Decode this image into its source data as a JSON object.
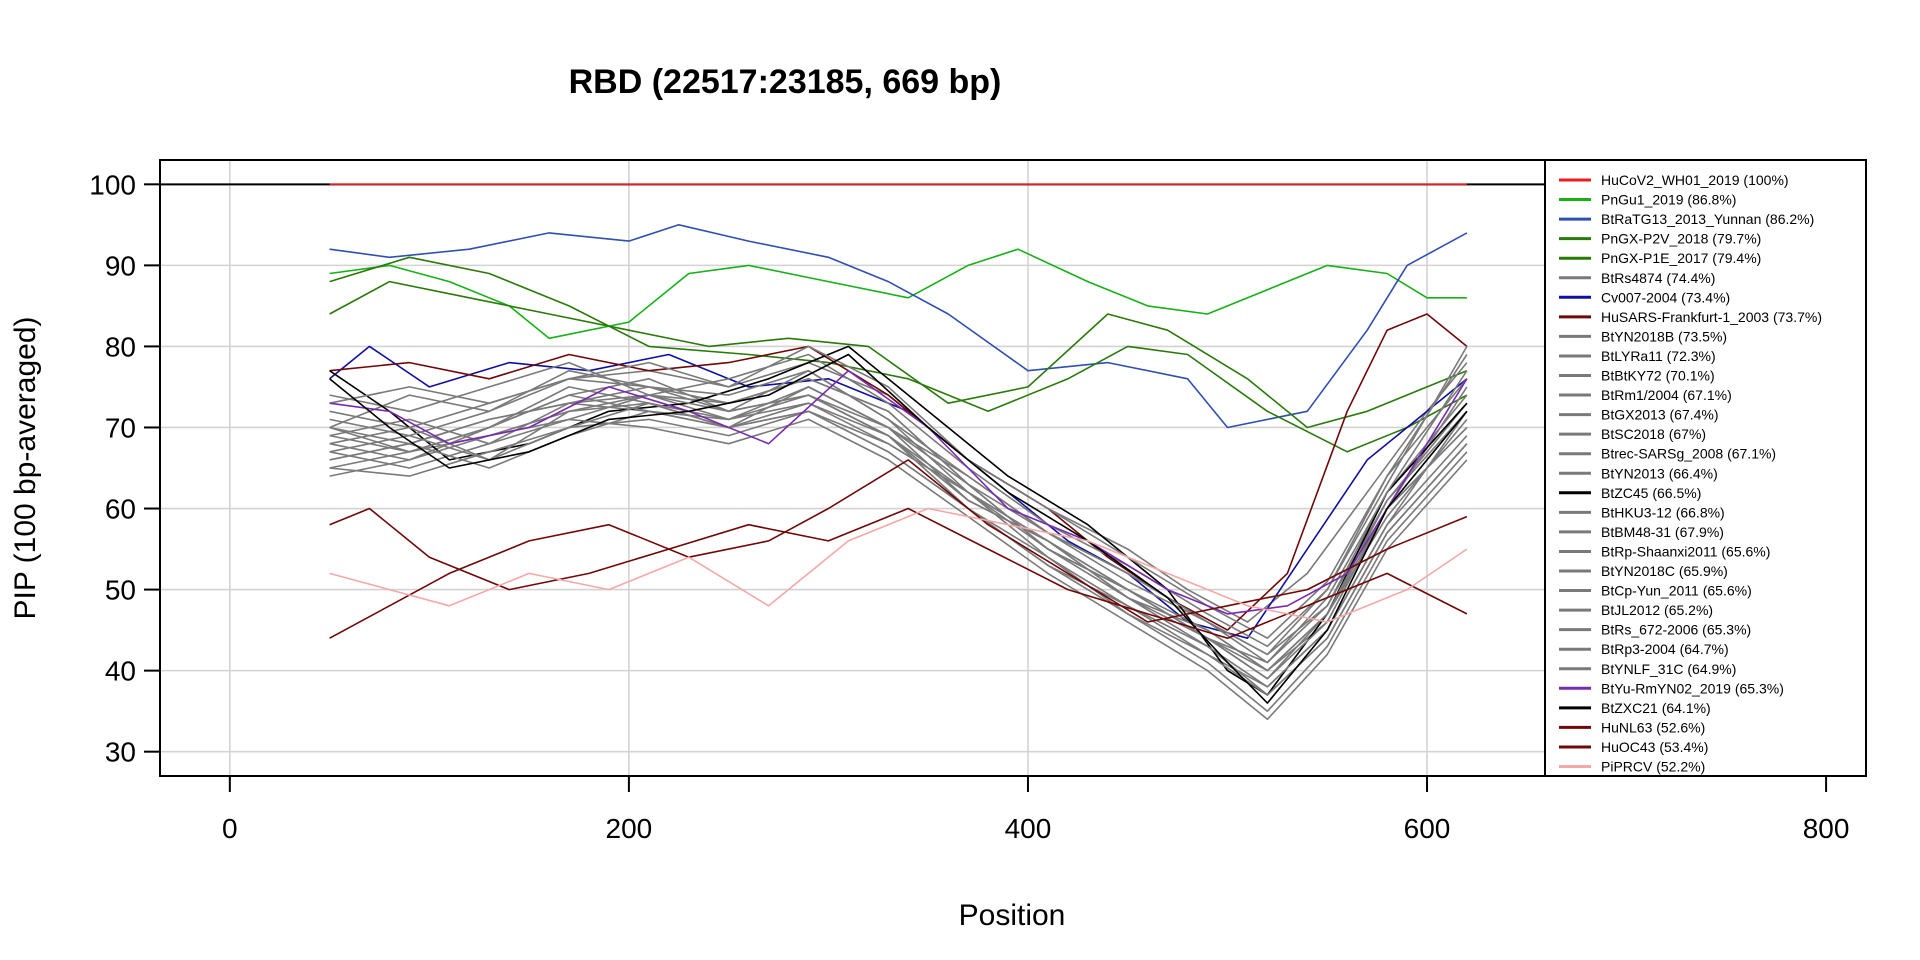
{
  "chart_data": {
    "type": "line",
    "title": "RBD (22517:23185, 669 bp)",
    "xlabel": "Position",
    "ylabel": "PIP (100 bp-averaged)",
    "xlim": [
      -35,
      820
    ],
    "ylim": [
      27,
      103
    ],
    "x_ticks": [
      0,
      200,
      400,
      600,
      800
    ],
    "y_ticks": [
      30,
      40,
      50,
      60,
      70,
      80,
      90,
      100
    ],
    "grid": true,
    "legend_position": "right",
    "reference_line": 100,
    "series": [
      {
        "name": "HuCoV2_WH01_2019 (100%)",
        "color": "#ee1c1c",
        "x": [
          50,
          620
        ],
        "y": [
          100,
          100
        ]
      },
      {
        "name": "PnGu1_2019 (86.8%)",
        "color": "#17b017",
        "x": [
          50,
          80,
          110,
          140,
          160,
          200,
          230,
          260,
          300,
          340,
          370,
          395,
          430,
          460,
          490,
          520,
          550,
          580,
          600,
          620
        ],
        "y": [
          89,
          90,
          88,
          85,
          81,
          83,
          89,
          90,
          88,
          86,
          90,
          92,
          88,
          85,
          84,
          87,
          90,
          89,
          86,
          86
        ]
      },
      {
        "name": "BtRaTG13_2013_Yunnan (86.2%)",
        "color": "#3050b0",
        "x": [
          50,
          80,
          120,
          160,
          200,
          225,
          260,
          300,
          330,
          360,
          400,
          440,
          480,
          500,
          540,
          570,
          590,
          620
        ],
        "y": [
          92,
          91,
          92,
          94,
          93,
          95,
          93,
          91,
          88,
          84,
          77,
          78,
          76,
          70,
          72,
          82,
          90,
          94
        ]
      },
      {
        "name": "PnGX-P2V_2018 (79.7%)",
        "color": "#2a7a0a",
        "x": [
          50,
          80,
          120,
          160,
          200,
          240,
          280,
          320,
          360,
          400,
          440,
          470,
          510,
          540,
          570,
          600,
          620
        ],
        "y": [
          84,
          88,
          86,
          84,
          82,
          80,
          81,
          80,
          73,
          75,
          84,
          82,
          76,
          70,
          72,
          75,
          77
        ]
      },
      {
        "name": "PnGX-P1E_2017 (79.4%)",
        "color": "#2a7a0a",
        "x": [
          50,
          90,
          130,
          170,
          210,
          260,
          300,
          340,
          380,
          420,
          450,
          480,
          520,
          560,
          590,
          620
        ],
        "y": [
          88,
          91,
          89,
          85,
          80,
          79,
          78,
          76,
          72,
          76,
          80,
          79,
          72,
          67,
          70,
          74
        ]
      },
      {
        "name": "BtRs4874 (74.4%)",
        "color": "#7a7a7a",
        "x": [
          50,
          90,
          130,
          170,
          210,
          250,
          290,
          330,
          370,
          410,
          450,
          480,
          510,
          540,
          570,
          600,
          620
        ],
        "y": [
          70,
          74,
          72,
          76,
          77,
          75,
          78,
          74,
          66,
          60,
          55,
          50,
          46,
          52,
          62,
          72,
          78
        ]
      },
      {
        "name": "Cv007-2004 (73.4%)",
        "color": "#1010a0",
        "x": [
          50,
          70,
          100,
          140,
          180,
          220,
          260,
          300,
          340,
          380,
          420,
          450,
          480,
          510,
          540,
          570,
          600,
          620
        ],
        "y": [
          76,
          80,
          75,
          78,
          77,
          79,
          75,
          76,
          72,
          64,
          56,
          52,
          46,
          44,
          55,
          66,
          72,
          76
        ]
      },
      {
        "name": "HuSARS-Frankfurt-1_2003 (73.7%)",
        "color": "#700808",
        "x": [
          50,
          90,
          130,
          170,
          210,
          250,
          290,
          330,
          370,
          410,
          440,
          470,
          500,
          530,
          560,
          580,
          600,
          620
        ],
        "y": [
          77,
          78,
          76,
          79,
          77,
          78,
          80,
          74,
          66,
          60,
          54,
          49,
          45,
          52,
          72,
          82,
          84,
          80
        ]
      },
      {
        "name": "BtYN2018B (73.5%)",
        "color": "#7a7a7a",
        "x": [
          50,
          90,
          130,
          170,
          210,
          250,
          290,
          330,
          370,
          410,
          450,
          490,
          520,
          550,
          580,
          620
        ],
        "y": [
          72,
          70,
          73,
          76,
          75,
          73,
          76,
          72,
          63,
          57,
          52,
          46,
          42,
          50,
          64,
          76
        ]
      },
      {
        "name": "BtLYRa11 (72.3%)",
        "color": "#7a7a7a",
        "x": [
          50,
          90,
          130,
          170,
          210,
          250,
          290,
          330,
          370,
          410,
          450,
          490,
          520,
          550,
          580,
          620
        ],
        "y": [
          68,
          66,
          70,
          74,
          76,
          72,
          77,
          71,
          62,
          55,
          50,
          44,
          41,
          48,
          62,
          74
        ]
      },
      {
        "name": "BtBtKY72 (70.1%)",
        "color": "#7a7a7a",
        "x": [
          50,
          90,
          130,
          170,
          210,
          250,
          290,
          330,
          370,
          410,
          450,
          490,
          520,
          550,
          580,
          620
        ],
        "y": [
          66,
          68,
          71,
          73,
          72,
          70,
          75,
          70,
          61,
          56,
          50,
          45,
          40,
          46,
          60,
          70
        ]
      },
      {
        "name": "BtRm1/2004 (67.1%)",
        "color": "#7a7a7a",
        "x": [
          50,
          90,
          130,
          170,
          210,
          250,
          290,
          330,
          370,
          410,
          450,
          490,
          520,
          550,
          580,
          620
        ],
        "y": [
          70,
          67,
          69,
          72,
          74,
          71,
          73,
          69,
          60,
          53,
          48,
          42,
          38,
          45,
          58,
          72
        ]
      },
      {
        "name": "BtGX2013 (67.4%)",
        "color": "#7a7a7a",
        "x": [
          50,
          90,
          130,
          170,
          210,
          250,
          290,
          330,
          370,
          410,
          450,
          490,
          520,
          550,
          580,
          620
        ],
        "y": [
          65,
          67,
          70,
          75,
          73,
          70,
          72,
          68,
          62,
          56,
          49,
          43,
          37,
          44,
          57,
          68
        ]
      },
      {
        "name": "BtSC2018 (67%)",
        "color": "#7a7a7a",
        "x": [
          50,
          90,
          130,
          170,
          210,
          250,
          290,
          330,
          370,
          410,
          450,
          490,
          520,
          550,
          580,
          620
        ],
        "y": [
          74,
          72,
          75,
          78,
          74,
          76,
          79,
          73,
          65,
          58,
          53,
          47,
          43,
          50,
          63,
          80
        ]
      },
      {
        "name": "Btrec-SARSg_2008 (67.1%)",
        "color": "#7a7a7a",
        "x": [
          50,
          90,
          130,
          170,
          210,
          250,
          290,
          330,
          370,
          410,
          450,
          490,
          520,
          550,
          580,
          620
        ],
        "y": [
          69,
          71,
          68,
          73,
          75,
          72,
          74,
          70,
          64,
          57,
          51,
          46,
          42,
          48,
          61,
          73
        ]
      },
      {
        "name": "BtYN2013 (66.4%)",
        "color": "#7a7a7a",
        "x": [
          50,
          90,
          130,
          170,
          210,
          250,
          290,
          330,
          370,
          410,
          450,
          490,
          520,
          550,
          580,
          620
        ],
        "y": [
          67,
          65,
          68,
          71,
          74,
          73,
          76,
          72,
          63,
          55,
          50,
          44,
          39,
          47,
          60,
          75
        ]
      },
      {
        "name": "BtZC45 (66.5%)",
        "color": "#000000",
        "x": [
          50,
          80,
          110,
          150,
          190,
          230,
          270,
          310,
          350,
          390,
          430,
          470,
          500,
          520,
          550,
          580,
          620
        ],
        "y": [
          77,
          72,
          66,
          68,
          72,
          73,
          76,
          80,
          72,
          64,
          58,
          50,
          40,
          37,
          47,
          62,
          73
        ]
      },
      {
        "name": "BtHKU3-12 (66.8%)",
        "color": "#7a7a7a",
        "x": [
          50,
          90,
          130,
          170,
          210,
          250,
          290,
          330,
          370,
          410,
          450,
          490,
          520,
          550,
          580,
          620
        ],
        "y": [
          71,
          69,
          72,
          77,
          75,
          74,
          77,
          71,
          64,
          57,
          52,
          46,
          41,
          49,
          62,
          77
        ]
      },
      {
        "name": "BtBM48-31 (67.9%)",
        "color": "#7a7a7a",
        "x": [
          50,
          90,
          130,
          170,
          210,
          250,
          290,
          330,
          370,
          410,
          450,
          490,
          520,
          550,
          580,
          620
        ],
        "y": [
          73,
          75,
          73,
          76,
          78,
          75,
          80,
          75,
          66,
          60,
          54,
          48,
          44,
          51,
          64,
          79
        ]
      },
      {
        "name": "BtRp-Shaanxi2011 (65.6%)",
        "color": "#7a7a7a",
        "x": [
          50,
          90,
          130,
          170,
          210,
          250,
          290,
          330,
          370,
          410,
          450,
          490,
          520,
          550,
          580,
          620
        ],
        "y": [
          65,
          64,
          67,
          70,
          71,
          69,
          72,
          67,
          60,
          54,
          47,
          41,
          35,
          43,
          56,
          67
        ]
      },
      {
        "name": "BtYN2018C (65.9%)",
        "color": "#7a7a7a",
        "x": [
          50,
          90,
          130,
          170,
          210,
          250,
          290,
          330,
          370,
          410,
          450,
          490,
          520,
          550,
          580,
          620
        ],
        "y": [
          68,
          70,
          66,
          72,
          73,
          71,
          74,
          69,
          61,
          56,
          49,
          45,
          40,
          47,
          59,
          71
        ]
      },
      {
        "name": "BtCp-Yun_2011 (65.6%)",
        "color": "#7a7a7a",
        "x": [
          50,
          90,
          130,
          170,
          210,
          250,
          290,
          330,
          370,
          410,
          450,
          490,
          520,
          550,
          580,
          620
        ],
        "y": [
          66,
          68,
          65,
          69,
          72,
          70,
          73,
          68,
          62,
          54,
          48,
          43,
          38,
          45,
          58,
          69
        ]
      },
      {
        "name": "BtJL2012 (65.2%)",
        "color": "#7a7a7a",
        "x": [
          50,
          90,
          130,
          170,
          210,
          250,
          290,
          330,
          370,
          410,
          450,
          490,
          520,
          550,
          580,
          620
        ],
        "y": [
          64,
          66,
          69,
          71,
          70,
          68,
          71,
          66,
          59,
          52,
          46,
          40,
          34,
          42,
          55,
          66
        ]
      },
      {
        "name": "BtRs_672-2006 (65.3%)",
        "color": "#7a7a7a",
        "x": [
          50,
          90,
          130,
          170,
          210,
          250,
          290,
          330,
          370,
          410,
          450,
          490,
          520,
          550,
          580,
          620
        ],
        "y": [
          69,
          67,
          70,
          74,
          72,
          71,
          75,
          70,
          63,
          55,
          49,
          44,
          39,
          46,
          60,
          70
        ]
      },
      {
        "name": "BtRp3-2004 (64.7%)",
        "color": "#7a7a7a",
        "x": [
          50,
          90,
          130,
          170,
          210,
          250,
          290,
          330,
          370,
          410,
          450,
          490,
          520,
          550,
          580,
          620
        ],
        "y": [
          67,
          69,
          66,
          70,
          73,
          70,
          72,
          67,
          60,
          53,
          47,
          42,
          37,
          44,
          57,
          68
        ]
      },
      {
        "name": "BtYNLF_31C (64.9%)",
        "color": "#7a7a7a",
        "x": [
          50,
          90,
          130,
          170,
          210,
          250,
          290,
          330,
          370,
          410,
          450,
          490,
          520,
          550,
          580,
          620
        ],
        "y": [
          70,
          68,
          71,
          73,
          74,
          72,
          74,
          69,
          62,
          56,
          50,
          44,
          40,
          47,
          61,
          72
        ]
      },
      {
        "name": "BtYu-RmYN02_2019 (65.3%)",
        "color": "#7a2ab0",
        "x": [
          50,
          80,
          110,
          150,
          190,
          230,
          270,
          310,
          350,
          390,
          430,
          470,
          500,
          530,
          560,
          590,
          620
        ],
        "y": [
          73,
          72,
          68,
          70,
          75,
          72,
          68,
          77,
          70,
          60,
          56,
          50,
          47,
          48,
          52,
          64,
          76
        ]
      },
      {
        "name": "BtZXC21 (64.1%)",
        "color": "#000000",
        "x": [
          50,
          80,
          110,
          150,
          190,
          230,
          270,
          310,
          350,
          390,
          430,
          470,
          500,
          520,
          550,
          580,
          620
        ],
        "y": [
          76,
          70,
          65,
          67,
          71,
          72,
          74,
          79,
          70,
          62,
          56,
          49,
          41,
          36,
          45,
          60,
          72
        ]
      },
      {
        "name": "HuNL63 (52.6%)",
        "color": "#700808",
        "x": [
          50,
          80,
          110,
          150,
          190,
          230,
          270,
          300,
          340,
          380,
          420,
          460,
          500,
          540,
          580,
          620
        ],
        "y": [
          44,
          48,
          52,
          56,
          58,
          54,
          56,
          60,
          66,
          58,
          52,
          46,
          48,
          50,
          55,
          59
        ]
      },
      {
        "name": "HuOC43 (53.4%)",
        "color": "#700808",
        "x": [
          50,
          70,
          100,
          140,
          180,
          220,
          260,
          300,
          340,
          380,
          420,
          460,
          500,
          540,
          580,
          620
        ],
        "y": [
          58,
          60,
          54,
          50,
          52,
          55,
          58,
          56,
          60,
          55,
          50,
          47,
          44,
          48,
          52,
          47
        ]
      },
      {
        "name": "PiPRCV (52.2%)",
        "color": "#f4a8a8",
        "x": [
          50,
          80,
          110,
          150,
          190,
          230,
          270,
          310,
          350,
          390,
          430,
          470,
          510,
          550,
          590,
          620
        ],
        "y": [
          52,
          50,
          48,
          52,
          50,
          54,
          48,
          56,
          60,
          58,
          56,
          52,
          48,
          46,
          50,
          55
        ]
      }
    ]
  }
}
